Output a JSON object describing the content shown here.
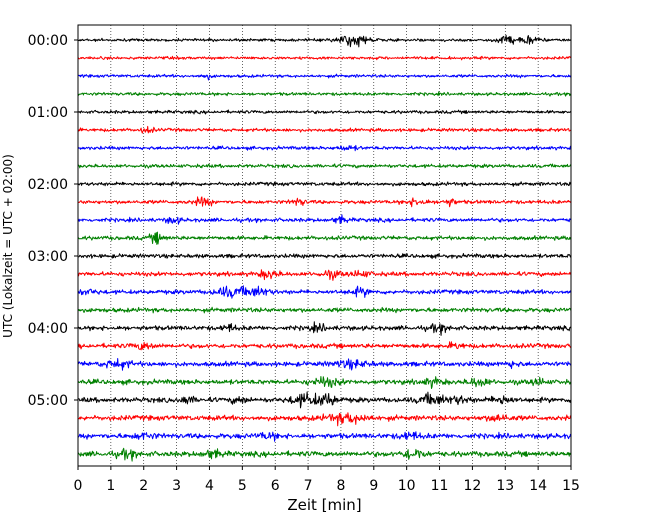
{
  "chart_data": {
    "type": "line",
    "title": "",
    "xlabel": "Zeit  [min]",
    "ylabel": "UTC (Lokalzeit = UTC + 02:00)",
    "xlim": [
      0,
      15
    ],
    "x_ticks": [
      0,
      1,
      2,
      3,
      4,
      5,
      6,
      7,
      8,
      9,
      10,
      11,
      12,
      13,
      14,
      15
    ],
    "x_tick_labels": [
      "0",
      "1",
      "2",
      "3",
      "4",
      "5",
      "6",
      "7",
      "8",
      "9",
      "10",
      "11",
      "12",
      "13",
      "14",
      "15"
    ],
    "y_tick_labels": [
      "00:00",
      "01:00",
      "02:00",
      "03:00",
      "04:00",
      "05:00"
    ],
    "traces_per_hour": 4,
    "trace_count": 24,
    "trace_colors": [
      "#000000",
      "#ff0000",
      "#0000ff",
      "#008000"
    ],
    "grid": "vertical dotted lines at each minute",
    "legend": "none"
  }
}
